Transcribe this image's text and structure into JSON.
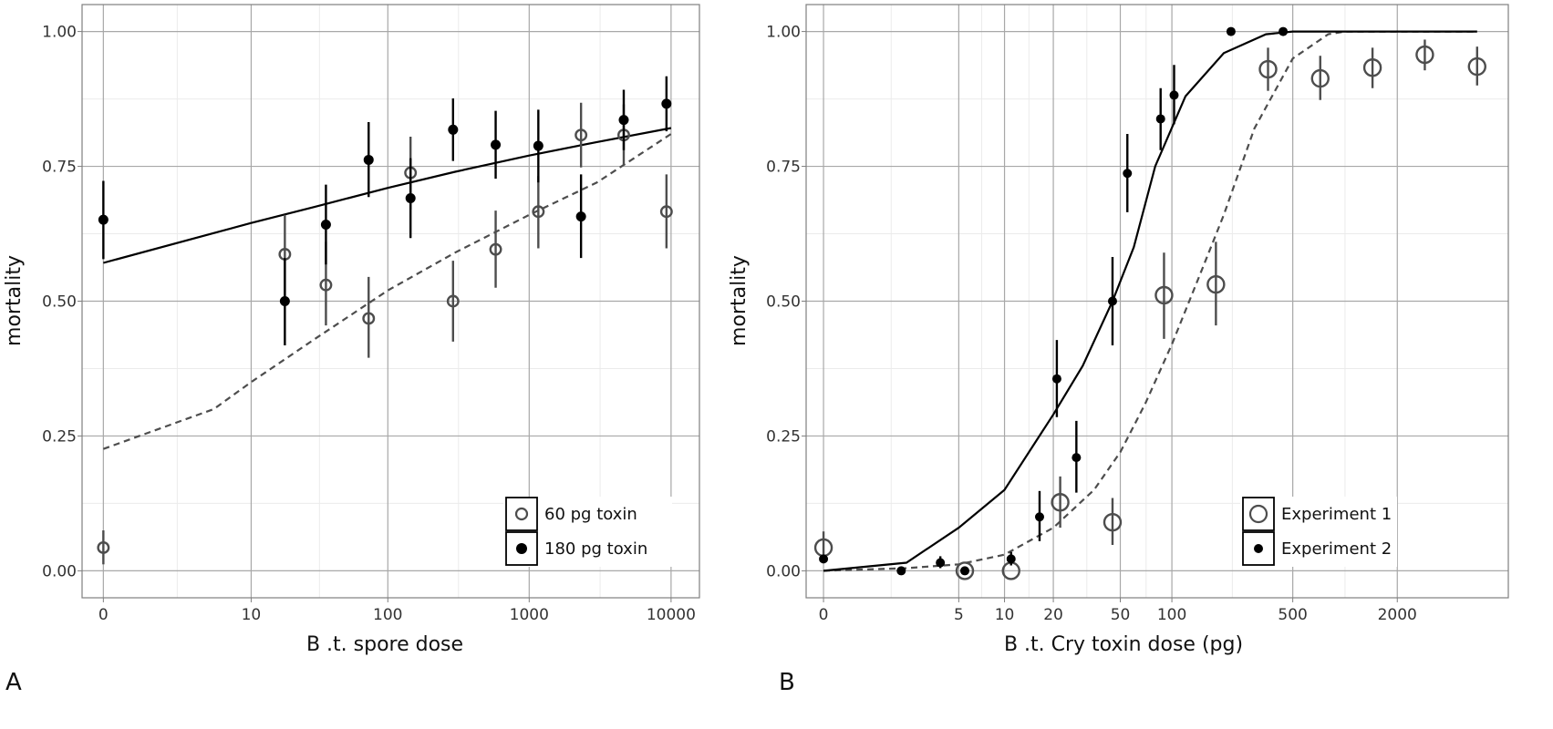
{
  "chart_data": [
    {
      "type": "scatter",
      "panel_label": "A",
      "xlabel": "B .t. spore dose",
      "ylabel": "mortality",
      "x_scale": "log(x+1)",
      "x_ticks": [
        {
          "value": 0,
          "label": "0"
        },
        {
          "value": 10,
          "label": "10"
        },
        {
          "value": 100,
          "label": "100"
        },
        {
          "value": 1000,
          "label": "1000"
        },
        {
          "value": 10000,
          "label": "10000"
        }
      ],
      "y_ticks": [
        {
          "value": 0,
          "label": "0.00"
        },
        {
          "value": 0.25,
          "label": "0.25"
        },
        {
          "value": 0.5,
          "label": "0.50"
        },
        {
          "value": 0.75,
          "label": "0.75"
        },
        {
          "value": 1,
          "label": "1.00"
        }
      ],
      "ylim": [
        -0.05,
        1.05
      ],
      "grid": true,
      "legend_position": "bottom-right",
      "series": [
        {
          "name": "60 pg toxin",
          "marker": "open-circle",
          "line": "dashed",
          "points": [
            {
              "x": 0,
              "y": 0.043,
              "lo": 0.012,
              "hi": 0.075
            },
            {
              "x": 18,
              "y": 0.587,
              "lo": 0.51,
              "hi": 0.66
            },
            {
              "x": 36,
              "y": 0.53,
              "lo": 0.455,
              "hi": 0.61
            },
            {
              "x": 73,
              "y": 0.468,
              "lo": 0.395,
              "hi": 0.545
            },
            {
              "x": 145,
              "y": 0.738,
              "lo": 0.67,
              "hi": 0.805
            },
            {
              "x": 290,
              "y": 0.5,
              "lo": 0.425,
              "hi": 0.575
            },
            {
              "x": 580,
              "y": 0.596,
              "lo": 0.525,
              "hi": 0.668
            },
            {
              "x": 1160,
              "y": 0.666,
              "lo": 0.598,
              "hi": 0.732
            },
            {
              "x": 2320,
              "y": 0.808,
              "lo": 0.748,
              "hi": 0.868
            },
            {
              "x": 4640,
              "y": 0.808,
              "lo": 0.752,
              "hi": 0.865
            },
            {
              "x": 9280,
              "y": 0.666,
              "lo": 0.598,
              "hi": 0.735
            }
          ],
          "fit": [
            {
              "x": 0,
              "y": 0.226
            },
            {
              "x": 5,
              "y": 0.3
            },
            {
              "x": 10,
              "y": 0.35
            },
            {
              "x": 30,
              "y": 0.43
            },
            {
              "x": 100,
              "y": 0.52
            },
            {
              "x": 300,
              "y": 0.59
            },
            {
              "x": 1000,
              "y": 0.66
            },
            {
              "x": 3000,
              "y": 0.72
            },
            {
              "x": 10000,
              "y": 0.81
            }
          ]
        },
        {
          "name": "180 pg toxin",
          "marker": "filled-circle",
          "line": "solid",
          "points": [
            {
              "x": 0,
              "y": 0.651,
              "lo": 0.578,
              "hi": 0.723
            },
            {
              "x": 18,
              "y": 0.5,
              "lo": 0.418,
              "hi": 0.58
            },
            {
              "x": 36,
              "y": 0.642,
              "lo": 0.568,
              "hi": 0.716
            },
            {
              "x": 73,
              "y": 0.762,
              "lo": 0.693,
              "hi": 0.832
            },
            {
              "x": 145,
              "y": 0.691,
              "lo": 0.617,
              "hi": 0.765
            },
            {
              "x": 290,
              "y": 0.818,
              "lo": 0.76,
              "hi": 0.876
            },
            {
              "x": 580,
              "y": 0.79,
              "lo": 0.727,
              "hi": 0.853
            },
            {
              "x": 1160,
              "y": 0.788,
              "lo": 0.72,
              "hi": 0.855
            },
            {
              "x": 2320,
              "y": 0.657,
              "lo": 0.58,
              "hi": 0.735
            },
            {
              "x": 4640,
              "y": 0.836,
              "lo": 0.78,
              "hi": 0.892
            },
            {
              "x": 9280,
              "y": 0.866,
              "lo": 0.815,
              "hi": 0.917
            }
          ],
          "fit": [
            {
              "x": 0,
              "y": 0.571
            },
            {
              "x": 10,
              "y": 0.645
            },
            {
              "x": 30,
              "y": 0.675
            },
            {
              "x": 100,
              "y": 0.71
            },
            {
              "x": 300,
              "y": 0.74
            },
            {
              "x": 1000,
              "y": 0.77
            },
            {
              "x": 3000,
              "y": 0.795
            },
            {
              "x": 10000,
              "y": 0.821
            }
          ]
        }
      ]
    },
    {
      "type": "scatter",
      "panel_label": "B",
      "xlabel": "B .t. Cry toxin dose (pg)",
      "ylabel": "mortality",
      "x_scale": "log(x+1)",
      "x_ticks": [
        {
          "value": 0,
          "label": "0"
        },
        {
          "value": 5,
          "label": "5"
        },
        {
          "value": 10,
          "label": "10"
        },
        {
          "value": 20,
          "label": "20"
        },
        {
          "value": 50,
          "label": "50"
        },
        {
          "value": 100,
          "label": "100"
        },
        {
          "value": 500,
          "label": "500"
        },
        {
          "value": 2000,
          "label": "2000"
        }
      ],
      "y_ticks": [
        {
          "value": 0,
          "label": "0.00"
        },
        {
          "value": 0.25,
          "label": "0.25"
        },
        {
          "value": 0.5,
          "label": "0.50"
        },
        {
          "value": 0.75,
          "label": "0.75"
        },
        {
          "value": 1,
          "label": "1.00"
        }
      ],
      "ylim": [
        -0.05,
        1.05
      ],
      "grid": true,
      "legend_position": "bottom-right",
      "series": [
        {
          "name": "Experiment 1",
          "marker": "open-circle-large",
          "line": "dashed",
          "points": [
            {
              "x": 0,
              "y": 0.043,
              "lo": 0.015,
              "hi": 0.073
            },
            {
              "x": 5.5,
              "y": 0.0
            },
            {
              "x": 11,
              "y": 0.0
            },
            {
              "x": 22,
              "y": 0.127,
              "lo": 0.08,
              "hi": 0.175
            },
            {
              "x": 45,
              "y": 0.09,
              "lo": 0.048,
              "hi": 0.135
            },
            {
              "x": 90,
              "y": 0.511,
              "lo": 0.43,
              "hi": 0.59
            },
            {
              "x": 180,
              "y": 0.531,
              "lo": 0.455,
              "hi": 0.61
            },
            {
              "x": 360,
              "y": 0.93,
              "lo": 0.89,
              "hi": 0.97
            },
            {
              "x": 720,
              "y": 0.913,
              "lo": 0.873,
              "hi": 0.955
            },
            {
              "x": 1440,
              "y": 0.933,
              "lo": 0.895,
              "hi": 0.97
            },
            {
              "x": 2880,
              "y": 0.957,
              "lo": 0.928,
              "hi": 0.985
            },
            {
              "x": 5760,
              "y": 0.935,
              "lo": 0.9,
              "hi": 0.972
            }
          ],
          "fit": [
            {
              "x": 0,
              "y": 0.0
            },
            {
              "x": 2,
              "y": 0.005
            },
            {
              "x": 5,
              "y": 0.012
            },
            {
              "x": 10,
              "y": 0.03
            },
            {
              "x": 20,
              "y": 0.08
            },
            {
              "x": 35,
              "y": 0.15
            },
            {
              "x": 50,
              "y": 0.22
            },
            {
              "x": 70,
              "y": 0.31
            },
            {
              "x": 100,
              "y": 0.42
            },
            {
              "x": 150,
              "y": 0.56
            },
            {
              "x": 200,
              "y": 0.66
            },
            {
              "x": 300,
              "y": 0.82
            },
            {
              "x": 500,
              "y": 0.95
            },
            {
              "x": 800,
              "y": 0.995
            },
            {
              "x": 1000,
              "y": 1.0
            },
            {
              "x": 5760,
              "y": 1.0
            }
          ]
        },
        {
          "name": "Experiment 2",
          "marker": "filled-circle-small",
          "line": "solid",
          "points": [
            {
              "x": 0,
              "y": 0.022
            },
            {
              "x": 1.8,
              "y": 0.0
            },
            {
              "x": 3.7,
              "y": 0.015,
              "lo": 0.005,
              "hi": 0.027
            },
            {
              "x": 5.5,
              "y": 0.0
            },
            {
              "x": 11,
              "y": 0.022,
              "lo": 0.01,
              "hi": 0.035
            },
            {
              "x": 16.5,
              "y": 0.1,
              "lo": 0.055,
              "hi": 0.148
            },
            {
              "x": 21,
              "y": 0.356,
              "lo": 0.285,
              "hi": 0.428
            },
            {
              "x": 27.5,
              "y": 0.21,
              "lo": 0.145,
              "hi": 0.278
            },
            {
              "x": 45,
              "y": 0.5,
              "lo": 0.418,
              "hi": 0.582
            },
            {
              "x": 55,
              "y": 0.737,
              "lo": 0.665,
              "hi": 0.81
            },
            {
              "x": 86,
              "y": 0.838,
              "lo": 0.78,
              "hi": 0.895
            },
            {
              "x": 103,
              "y": 0.882,
              "lo": 0.828,
              "hi": 0.938
            },
            {
              "x": 220,
              "y": 1.0
            },
            {
              "x": 440,
              "y": 1.0
            }
          ],
          "fit": [
            {
              "x": 0,
              "y": 0.0
            },
            {
              "x": 2,
              "y": 0.015
            },
            {
              "x": 5,
              "y": 0.08
            },
            {
              "x": 10,
              "y": 0.15
            },
            {
              "x": 20,
              "y": 0.29
            },
            {
              "x": 30,
              "y": 0.38
            },
            {
              "x": 45,
              "y": 0.5
            },
            {
              "x": 60,
              "y": 0.6
            },
            {
              "x": 80,
              "y": 0.75
            },
            {
              "x": 120,
              "y": 0.88
            },
            {
              "x": 200,
              "y": 0.96
            },
            {
              "x": 350,
              "y": 0.995
            },
            {
              "x": 500,
              "y": 1.0
            },
            {
              "x": 5760,
              "y": 1.0
            }
          ]
        }
      ]
    }
  ]
}
